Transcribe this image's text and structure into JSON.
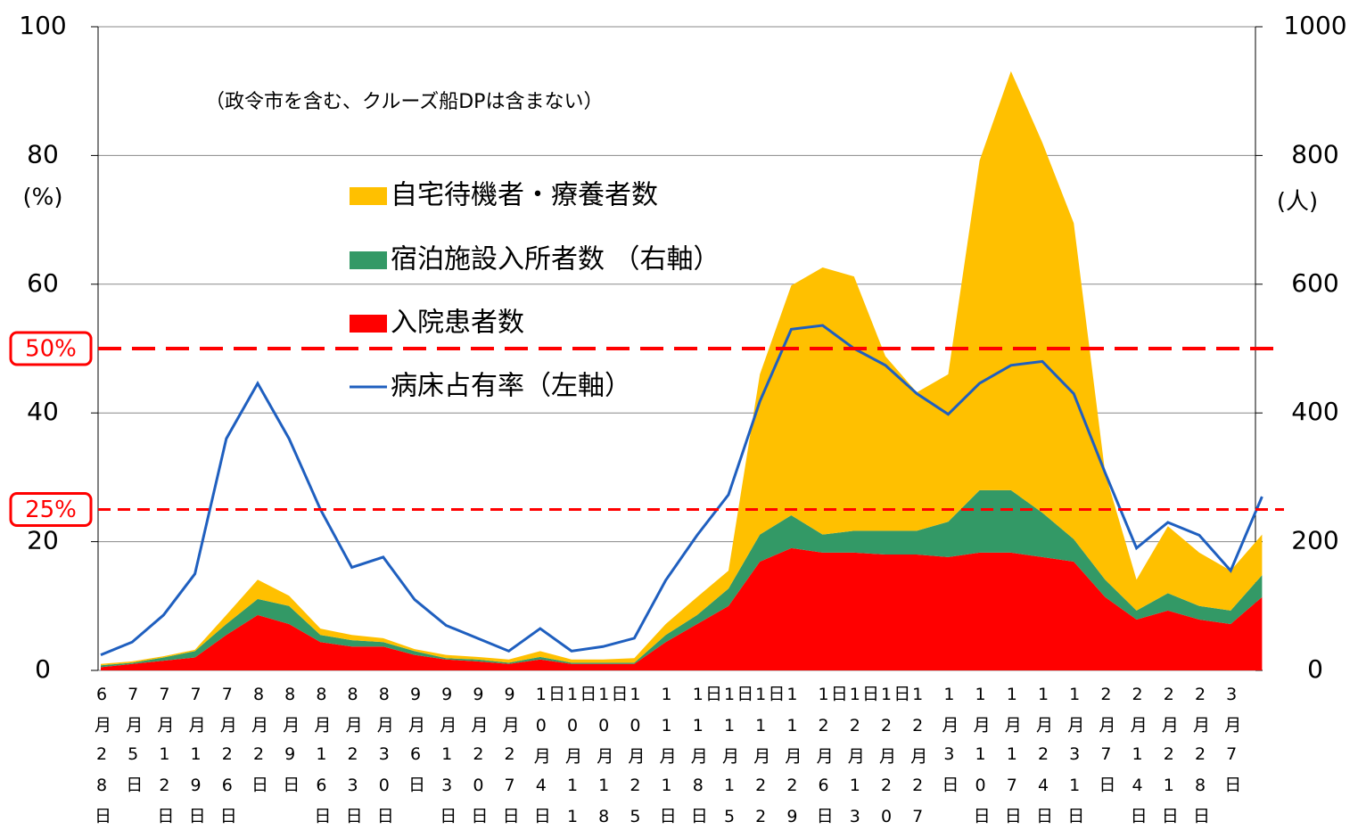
{
  "chart_data": {
    "type": "stacked_area_line",
    "subtitle": "（政令市を含む、クルーズ船DPは含まない）",
    "y_label": "(%)",
    "y2_label": "(人)",
    "categories": [
      "6月28日",
      "7月5日",
      "7月12日",
      "7月19日",
      "7月26日",
      "8月2日",
      "8月9日",
      "8月16日",
      "8月23日",
      "8月30日",
      "9月6日",
      "9月13日",
      "9月20日",
      "9月27日",
      "10月4日",
      "10月11日",
      "10月18日",
      "10月25日",
      "11月1日",
      "11月8日",
      "11月15日",
      "11月22日",
      "11月29日",
      "12月6日",
      "12月13日",
      "12月20日",
      "12月27日",
      "1月3日",
      "1月10日",
      "1月17日",
      "1月24日",
      "1月31日",
      "2月7日",
      "2月14日",
      "2月21日",
      "2月28日",
      "3月7日",
      null
    ],
    "ylim": [
      0,
      100
    ],
    "yticks": [
      0,
      20,
      40,
      60,
      80,
      100
    ],
    "y2lim": [
      0,
      1000
    ],
    "y2ticks": [
      0,
      200,
      400,
      600,
      800,
      1000
    ],
    "grid": true,
    "reference_lines": [
      {
        "value": 50,
        "label": "50%",
        "color": "#ff0000"
      },
      {
        "value": 25,
        "label": "25%",
        "color": "#ff0000"
      }
    ],
    "series": [
      {
        "name": "入院患者数",
        "color": "#ff0000",
        "kind": "area",
        "axis": "y2",
        "values": [
          5,
          10,
          15,
          20,
          55,
          86,
          72,
          44,
          37,
          37,
          24,
          17,
          14,
          10,
          17,
          10,
          10,
          10,
          44,
          72,
          100,
          169,
          190,
          183,
          183,
          180,
          180,
          176,
          183,
          183,
          176,
          169,
          114,
          79,
          93,
          79,
          72,
          114
        ]
      },
      {
        "name": "宿泊施設入所者数 （右軸）",
        "color": "#339966",
        "kind": "area",
        "axis": "y2",
        "values": [
          3,
          2,
          5,
          10,
          17,
          25,
          28,
          11,
          10,
          7,
          6,
          2,
          3,
          2,
          4,
          2,
          2,
          2,
          11,
          14,
          27,
          42,
          51,
          28,
          34,
          37,
          37,
          55,
          97,
          97,
          69,
          35,
          27,
          14,
          27,
          21,
          21,
          34
        ]
      },
      {
        "name": "自宅待機者・療養者数",
        "color": "#ffc000",
        "kind": "area",
        "axis": "y2",
        "values": [
          2,
          2,
          2,
          2,
          14,
          30,
          16,
          10,
          8,
          6,
          3,
          5,
          4,
          5,
          9,
          5,
          5,
          7,
          17,
          28,
          28,
          249,
          357,
          415,
          395,
          271,
          215,
          229,
          512,
          651,
          575,
          491,
          166,
          48,
          104,
          83,
          62,
          63
        ]
      },
      {
        "name": "病床占有率（左軸）",
        "color": "#1f5fbf",
        "kind": "line",
        "axis": "y",
        "values": [
          2.4,
          4.4,
          8.6,
          15,
          36,
          44.6,
          36,
          25,
          16,
          17.6,
          11,
          7,
          5,
          3,
          6.5,
          3,
          3.7,
          5,
          14,
          21,
          27.3,
          41.8,
          53,
          53.6,
          50,
          47.4,
          43,
          39.8,
          44.6,
          47.4,
          48,
          43,
          30.7,
          19,
          23,
          21,
          15.5,
          27
        ]
      }
    ]
  }
}
